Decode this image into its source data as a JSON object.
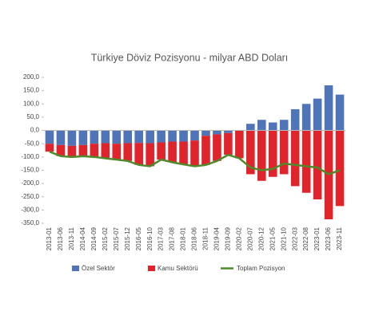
{
  "chart_data": {
    "type": "stacked-bar-line",
    "title": "Türkiye Döviz Pozisyonu - milyar ABD Doları",
    "categories": [
      "2013-01",
      "2013-06",
      "2013-11",
      "2014-04",
      "2014-09",
      "2015-02",
      "2015-07",
      "2015-12",
      "2016-05",
      "2016-10",
      "2017-03",
      "2017-08",
      "2018-01",
      "2018-06",
      "2018-11",
      "2019-04",
      "2019-09",
      "2020-02",
      "2020-07",
      "2020-12",
      "2021-05",
      "2021-10",
      "2022-03",
      "2022-08",
      "2023-01",
      "2023-06",
      "2023-11"
    ],
    "series": [
      {
        "name": "Özel Sektör",
        "type": "bar",
        "color": "#4f75b8",
        "values": [
          -50,
          -55,
          -58,
          -55,
          -50,
          -48,
          -50,
          -48,
          -47,
          -48,
          -45,
          -42,
          -42,
          -38,
          -20,
          -15,
          -10,
          0,
          25,
          40,
          30,
          40,
          80,
          100,
          120,
          170,
          135
        ]
      },
      {
        "name": "Kamu Sektörü",
        "type": "bar",
        "color": "#e0242c",
        "values": [
          -30,
          -42,
          -42,
          -42,
          -50,
          -57,
          -60,
          -67,
          -83,
          -87,
          -65,
          -78,
          -86,
          -97,
          -110,
          -100,
          -82,
          -105,
          -165,
          -190,
          -175,
          -165,
          -210,
          -235,
          -260,
          -335,
          -285
        ]
      },
      {
        "name": "Toplam Pozisyon",
        "type": "line",
        "color": "#4e8a2a",
        "values": [
          -80,
          -97,
          -100,
          -97,
          -100,
          -105,
          -110,
          -115,
          -130,
          -135,
          -110,
          -120,
          -128,
          -135,
          -130,
          -115,
          -92,
          -105,
          -140,
          -150,
          -145,
          -125,
          -130,
          -135,
          -140,
          -165,
          -150
        ]
      }
    ],
    "ylim": [
      -350,
      200
    ],
    "yticks": [
      {
        "value": -350,
        "label": "-350,0"
      },
      {
        "value": -300,
        "label": "-300,0"
      },
      {
        "value": -250,
        "label": "-250,0"
      },
      {
        "value": -200,
        "label": "-200,0"
      },
      {
        "value": -150,
        "label": "-150,0"
      },
      {
        "value": -100,
        "label": "-100,0"
      },
      {
        "value": -50,
        "label": "-50,0"
      },
      {
        "value": 0,
        "label": "0,0"
      },
      {
        "value": 50,
        "label": "50,0"
      },
      {
        "value": 100,
        "label": "100,0"
      },
      {
        "value": 150,
        "label": "150,0"
      },
      {
        "value": 200,
        "label": "200,0"
      }
    ],
    "legend": "bottom"
  }
}
